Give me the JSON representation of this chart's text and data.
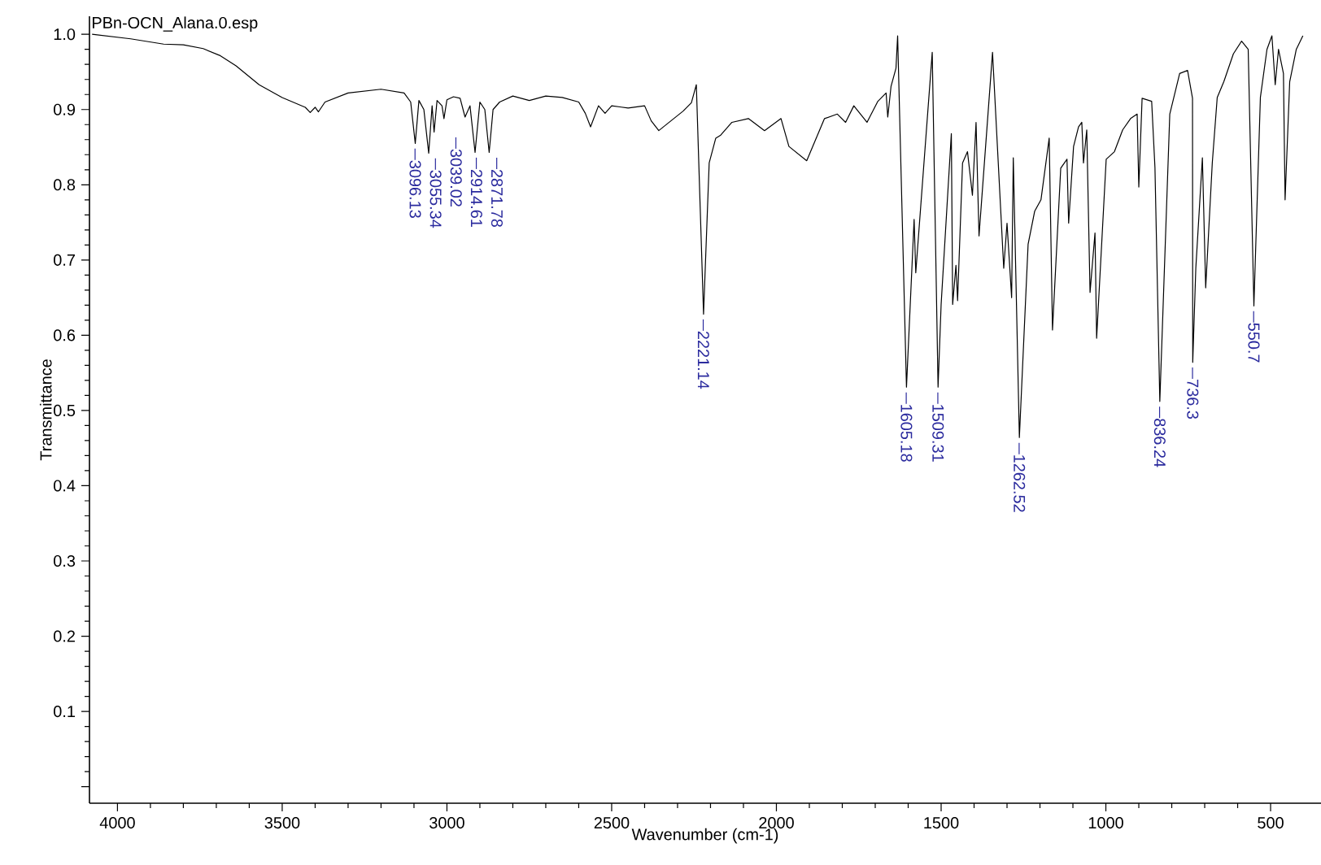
{
  "chart_data": {
    "type": "line",
    "title": "PBn-OCN_Alana.0.esp",
    "xlabel": "Wavenumber (cm-1)",
    "ylabel": "Transmittance",
    "x": [
      4077,
      3960,
      3860,
      3800,
      3740,
      3690,
      3640,
      3570,
      3500,
      3430,
      3415,
      3400,
      3390,
      3370,
      3300,
      3200,
      3130,
      3110,
      3096.13,
      3085,
      3070,
      3055.34,
      3045,
      3039.02,
      3030,
      3015,
      3009,
      3000,
      2980,
      2960,
      2945,
      2930,
      2914.61,
      2900,
      2885,
      2871.78,
      2860,
      2840,
      2800,
      2750,
      2700,
      2650,
      2600,
      2580,
      2564,
      2540,
      2520,
      2500,
      2450,
      2400,
      2380,
      2357,
      2320,
      2283,
      2258,
      2243,
      2221.14,
      2204,
      2184,
      2169,
      2135,
      2085,
      2036,
      1986,
      1962,
      1908,
      1854,
      1815,
      1790,
      1765,
      1725,
      1692,
      1667,
      1662,
      1652,
      1637,
      1632,
      1605.18,
      1582,
      1577,
      1527,
      1509.31,
      1500,
      1469,
      1465,
      1455,
      1450,
      1435,
      1420,
      1405,
      1394,
      1385,
      1344,
      1310,
      1300,
      1286,
      1281,
      1262.52,
      1236,
      1216,
      1197,
      1172,
      1162,
      1137,
      1118,
      1113,
      1098,
      1083,
      1073,
      1068,
      1058,
      1048,
      1033,
      1028,
      999,
      974,
      949,
      925,
      905,
      900,
      890,
      861,
      851,
      836.24,
      806,
      776,
      752,
      737,
      736.3,
      727,
      707,
      697,
      677,
      662,
      642,
      613,
      588,
      568,
      550.7,
      531,
      511,
      496,
      486,
      476,
      461,
      456,
      442,
      422,
      402
    ],
    "series": [
      {
        "color": "#000000",
        "values": [
          1.0,
          0.994,
          0.987,
          0.986,
          0.981,
          0.972,
          0.958,
          0.933,
          0.916,
          0.903,
          0.896,
          0.903,
          0.897,
          0.91,
          0.922,
          0.927,
          0.922,
          0.91,
          0.855,
          0.912,
          0.9,
          0.842,
          0.905,
          0.87,
          0.912,
          0.905,
          0.888,
          0.913,
          0.917,
          0.915,
          0.89,
          0.905,
          0.843,
          0.91,
          0.9,
          0.843,
          0.9,
          0.91,
          0.918,
          0.912,
          0.918,
          0.916,
          0.91,
          0.895,
          0.877,
          0.905,
          0.895,
          0.905,
          0.902,
          0.905,
          0.885,
          0.872,
          0.885,
          0.898,
          0.909,
          0.933,
          0.628,
          0.829,
          0.862,
          0.866,
          0.883,
          0.888,
          0.872,
          0.888,
          0.851,
          0.832,
          0.888,
          0.894,
          0.883,
          0.905,
          0.883,
          0.911,
          0.922,
          0.89,
          0.931,
          0.955,
          0.998,
          0.531,
          0.754,
          0.683,
          0.976,
          0.531,
          0.641,
          0.868,
          0.641,
          0.693,
          0.646,
          0.829,
          0.844,
          0.786,
          0.883,
          0.732,
          0.976,
          0.689,
          0.749,
          0.65,
          0.836,
          0.464,
          0.721,
          0.765,
          0.78,
          0.862,
          0.607,
          0.822,
          0.834,
          0.749,
          0.851,
          0.877,
          0.883,
          0.829,
          0.873,
          0.657,
          0.736,
          0.596,
          0.834,
          0.844,
          0.873,
          0.888,
          0.894,
          0.797,
          0.915,
          0.911,
          0.823,
          0.512,
          0.894,
          0.948,
          0.952,
          0.915,
          0.564,
          0.689,
          0.836,
          0.663,
          0.829,
          0.916,
          0.937,
          0.974,
          0.991,
          0.98,
          0.639,
          0.916,
          0.98,
          0.998,
          0.933,
          0.98,
          0.948,
          0.78,
          0.937,
          0.98,
          0.998
        ]
      }
    ],
    "xlim": [
      4085,
      347
    ],
    "ylim": [
      -0.022,
      1.024
    ],
    "xticks": [
      4000,
      3500,
      3000,
      2500,
      2000,
      1500,
      1000,
      500
    ],
    "yticks": [
      {
        "value": 0,
        "label": null
      },
      0.1,
      0.2,
      0.3,
      0.4,
      0.5,
      0.6,
      0.7,
      0.8,
      0.9,
      {
        "value": 1.0,
        "label": "1.0"
      }
    ],
    "annotations": [
      {
        "text": "3096.13",
        "x": 3096.13,
        "y": 0.855
      },
      {
        "text": "3055.34",
        "x": 3055.34,
        "y": 0.842
      },
      {
        "text": "3039.02",
        "x": 3039.02,
        "y": 0.87
      },
      {
        "text": "2914.61",
        "x": 2914.61,
        "y": 0.843
      },
      {
        "text": "2871.78",
        "x": 2871.78,
        "y": 0.843
      },
      {
        "text": "2221.14",
        "x": 2221.14,
        "y": 0.628
      },
      {
        "text": "1605.18",
        "x": 1605.18,
        "y": 0.531
      },
      {
        "text": "1509.31",
        "x": 1509.31,
        "y": 0.531
      },
      {
        "text": "1262.52",
        "x": 1262.52,
        "y": 0.464
      },
      {
        "text": "836.24",
        "x": 836.24,
        "y": 0.512
      },
      {
        "text": "736.3",
        "x": 736.3,
        "y": 0.564
      },
      {
        "text": "550.7",
        "x": 550.7,
        "y": 0.639
      }
    ],
    "grid": false
  }
}
